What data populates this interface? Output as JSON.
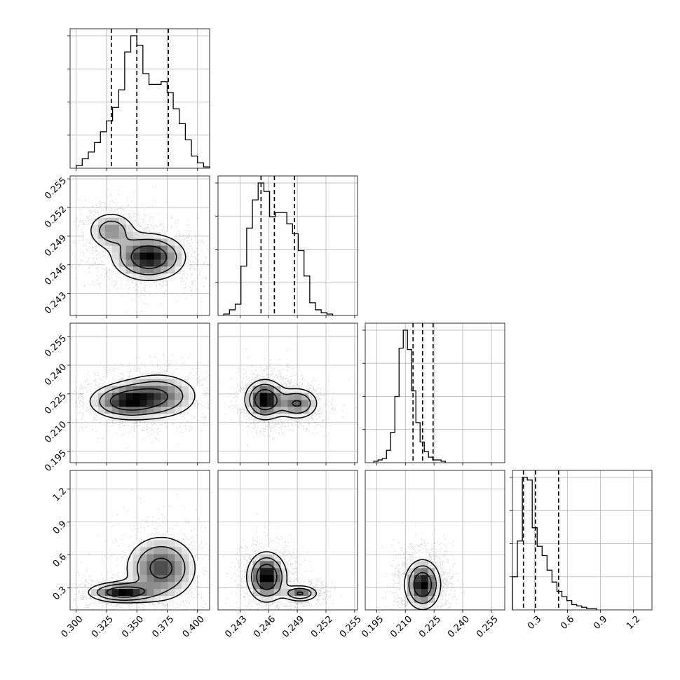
{
  "chart_data": {
    "type": "corner",
    "grid": true,
    "parameters": [
      {
        "range": [
          0.295,
          0.41
        ],
        "ticks": [
          0.3,
          0.325,
          0.35,
          0.375,
          0.4
        ],
        "tick_labels": [
          "0.300",
          "0.325",
          "0.350",
          "0.375",
          "0.400"
        ],
        "quantiles": [
          0.329,
          0.35,
          0.376
        ],
        "hist_edges_start": 0.3,
        "hist_bin_width": 0.005,
        "hist_counts": [
          2,
          7,
          12,
          19,
          27,
          35,
          45,
          58,
          86,
          98,
          91,
          70,
          62,
          62,
          64,
          56,
          44,
          33,
          21,
          9,
          4,
          1
        ]
      },
      {
        "range": [
          0.2407,
          0.2553
        ],
        "ticks": [
          0.243,
          0.246,
          0.249,
          0.252,
          0.255
        ],
        "tick_labels": [
          "0.243",
          "0.246",
          "0.249",
          "0.252",
          "0.255"
        ],
        "quantiles": [
          0.2452,
          0.2466,
          0.2487
        ],
        "hist_edges_start": 0.2413,
        "hist_bin_width": 0.0006,
        "hist_counts": [
          1,
          4,
          8,
          35,
          62,
          82,
          94,
          88,
          70,
          73,
          73,
          65,
          58,
          46,
          28,
          9,
          4,
          2,
          1
        ]
      },
      {
        "range": [
          0.189,
          0.262
        ],
        "ticks": [
          0.195,
          0.21,
          0.225,
          0.24,
          0.255
        ],
        "tick_labels": [
          "0.195",
          "0.210",
          "0.225",
          "0.240",
          "0.255"
        ],
        "quantiles": [
          0.214,
          0.219,
          0.2245
        ],
        "hist_edges_start": 0.1935,
        "hist_bin_width": 0.0022,
        "hist_counts": [
          1,
          2,
          3,
          9,
          22,
          48,
          83,
          96,
          82,
          52,
          29,
          15,
          8,
          4,
          2,
          2,
          1
        ]
      },
      {
        "range": [
          0.1,
          1.37
        ],
        "ticks": [
          0.3,
          0.6,
          0.9,
          1.2
        ],
        "tick_labels": [
          "0.3",
          "0.6",
          "0.9",
          "1.2"
        ],
        "quantiles": [
          0.2,
          0.31,
          0.52
        ],
        "hist_edges_start": 0.1,
        "hist_bin_width": 0.045,
        "hist_counts": [
          25,
          52,
          100,
          98,
          62,
          48,
          41,
          30,
          21,
          14,
          10,
          7,
          4,
          3,
          2,
          1,
          1
        ]
      }
    ],
    "pairs": [
      {
        "row": 1,
        "col": 0,
        "clusters": [
          {
            "cx": 0.329,
            "cy": 0.2496,
            "sx": 0.011,
            "sy": 0.0011,
            "w": 0.35
          },
          {
            "cx": 0.36,
            "cy": 0.2468,
            "sx": 0.016,
            "sy": 0.0013,
            "w": 0.65
          }
        ],
        "peaks": [
          0.1,
          0.3,
          0.6,
          0.9
        ]
      },
      {
        "row": 2,
        "col": 0,
        "clusters": [
          {
            "cx": 0.34,
            "cy": 0.221,
            "sx": 0.016,
            "sy": 0.005,
            "w": 0.55
          },
          {
            "cx": 0.368,
            "cy": 0.224,
            "sx": 0.018,
            "sy": 0.0065,
            "w": 0.45
          }
        ],
        "peaks": [
          0.1,
          0.3,
          0.6,
          0.9
        ]
      },
      {
        "row": 2,
        "col": 1,
        "clusters": [
          {
            "cx": 0.2456,
            "cy": 0.222,
            "sx": 0.0011,
            "sy": 0.0055,
            "w": 0.6
          },
          {
            "cx": 0.249,
            "cy": 0.22,
            "sx": 0.0012,
            "sy": 0.0045,
            "w": 0.4
          }
        ],
        "peaks": [
          0.1,
          0.3,
          0.6,
          0.9
        ]
      },
      {
        "row": 3,
        "col": 0,
        "clusters": [
          {
            "cx": 0.338,
            "cy": 0.26,
            "sx": 0.015,
            "sy": 0.05,
            "w": 0.55
          },
          {
            "cx": 0.37,
            "cy": 0.48,
            "sx": 0.016,
            "sy": 0.16,
            "w": 0.45
          }
        ],
        "peaks": [
          0.1,
          0.3,
          0.6,
          0.9
        ]
      },
      {
        "row": 3,
        "col": 1,
        "clusters": [
          {
            "cx": 0.2458,
            "cy": 0.4,
            "sx": 0.0011,
            "sy": 0.12,
            "w": 0.6
          },
          {
            "cx": 0.2493,
            "cy": 0.25,
            "sx": 0.001,
            "sy": 0.04,
            "w": 0.4
          }
        ],
        "peaks": [
          0.1,
          0.3,
          0.6,
          0.9
        ]
      },
      {
        "row": 3,
        "col": 2,
        "clusters": [
          {
            "cx": 0.219,
            "cy": 0.33,
            "sx": 0.005,
            "sy": 0.12,
            "w": 1.0
          }
        ],
        "peaks": [
          0.1,
          0.3,
          0.6,
          0.9
        ]
      }
    ]
  }
}
